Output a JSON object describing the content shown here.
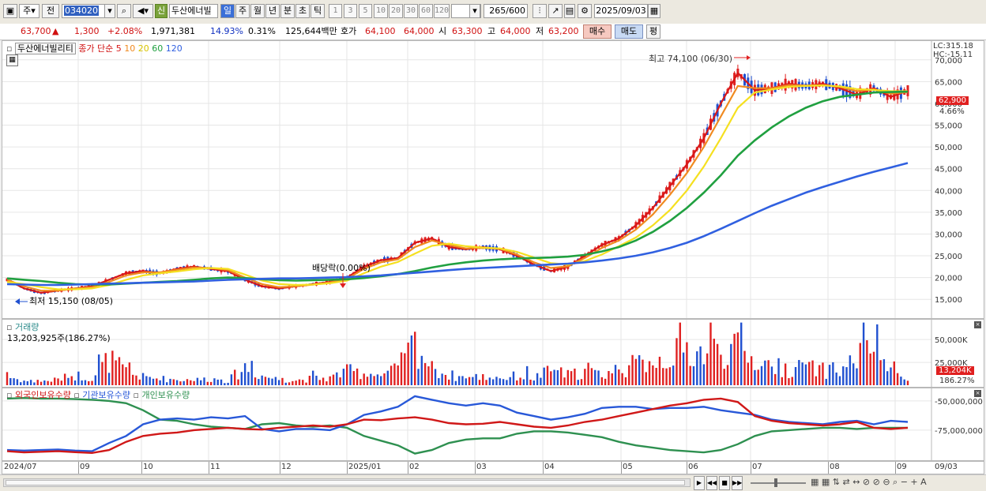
{
  "toolbar": {
    "market": "주",
    "prev": "전",
    "code": "034020",
    "shin": "신",
    "stock_name": "두산에너빌",
    "periods": [
      "일",
      "주",
      "월",
      "년",
      "분",
      "초",
      "틱"
    ],
    "minutes": [
      "1",
      "3",
      "5",
      "10",
      "20",
      "30",
      "60",
      "120"
    ],
    "count": "265",
    "count_max": "/600",
    "date": "2025/09/03"
  },
  "quote": {
    "price": "63,700",
    "arrow": "▲",
    "change": "1,300",
    "change_pct": "+2.08%",
    "volume": "1,971,381",
    "turnover": "14.93%",
    "ratio": "0.31%",
    "amount": "125,644백만",
    "hoga_label": "호가",
    "hoga1": "64,100",
    "hoga2": "64,000",
    "open_label": "시",
    "open": "63,300",
    "high_label": "고",
    "high": "64,000",
    "low_label": "저",
    "low": "63,200",
    "buy": "매수",
    "sell": "매도",
    "eval": "평"
  },
  "price_legend": {
    "name": "두산에너빌리티",
    "label": "종가 단순",
    "ma": [
      "5",
      "10",
      "20",
      "60",
      "120"
    ]
  },
  "indicators": {
    "lc": "LC:315.18",
    "hc": "HC:-15.11",
    "last_price": "62,900",
    "last_pct": "4.66%",
    "high_note": "최고 74,100 (06/30)",
    "low_note": "최저 15,150 (08/05)",
    "dividend_note": "배당락(0.00%)"
  },
  "volume_legend": {
    "title": "거래량",
    "value": "13,203,925주(186.27%)",
    "last_value": "13,204K",
    "last_pct": "186.27%"
  },
  "holding_legend": {
    "items": [
      "외국인보유수량",
      "기관보유수량",
      "개인보유수량"
    ]
  },
  "colors": {
    "up": "#e02020",
    "down": "#2050d0",
    "ma5": "#d81818",
    "ma10": "#f08a20",
    "ma20": "#f5e020",
    "ma60": "#20a040",
    "ma120": "#3060e0",
    "foreign": "#d01818",
    "institution": "#2858d8",
    "individual": "#2e9050"
  },
  "chart_data": [
    {
      "type": "line",
      "title": "",
      "xlabel": "",
      "ylabel": "",
      "ylim": [
        12500,
        72500
      ],
      "y_ticks": [
        "15,000",
        "20,000",
        "25,000",
        "30,000",
        "35,000",
        "40,000",
        "45,000",
        "50,000",
        "55,000",
        "60,000",
        "65,000",
        "70,000"
      ],
      "x_ticks": [
        "2024/07",
        "09",
        "10",
        "11",
        "12",
        "2025/01",
        "02",
        "03",
        "04",
        "05",
        "06",
        "07",
        "08",
        "09",
        "09/03"
      ],
      "x": [
        0,
        5,
        10,
        15,
        20,
        25,
        30,
        35,
        40,
        45,
        50,
        55,
        60,
        65,
        70,
        75,
        80,
        85,
        90,
        95,
        100,
        105,
        110,
        115,
        120,
        125,
        130,
        135,
        140,
        145,
        150,
        155,
        160,
        165,
        170,
        175,
        180,
        185,
        190,
        195,
        200,
        205,
        210,
        215,
        220,
        225,
        230,
        235,
        240,
        245,
        250,
        255,
        260,
        265
      ],
      "series": [
        {
          "name": "5",
          "values": [
            19500,
            17500,
            16500,
            17000,
            17500,
            18000,
            19500,
            21000,
            21500,
            21000,
            22000,
            22500,
            22000,
            21500,
            19500,
            18000,
            17500,
            18000,
            18500,
            19000,
            20000,
            22500,
            24000,
            24500,
            28000,
            29000,
            27000,
            26500,
            27000,
            26500,
            25000,
            23000,
            21500,
            22500,
            25000,
            27500,
            29000,
            32000,
            36000,
            41000,
            46000,
            52000,
            60000,
            67000,
            63000,
            63500,
            64500,
            64000,
            64500,
            63500,
            62000,
            63500,
            61500,
            62900
          ]
        },
        {
          "name": "10",
          "values": [
            19500,
            18000,
            17000,
            17000,
            17500,
            17800,
            19000,
            20500,
            21200,
            21200,
            21800,
            22300,
            22200,
            21700,
            20000,
            18500,
            17800,
            18000,
            18400,
            18900,
            19700,
            22000,
            23500,
            24200,
            27000,
            28500,
            27500,
            26700,
            26800,
            26600,
            25300,
            23500,
            22200,
            22600,
            24500,
            26800,
            28500,
            31000,
            34500,
            39000,
            44000,
            50000,
            57000,
            64000,
            63500,
            63500,
            64200,
            64100,
            64200,
            63800,
            62800,
            63200,
            62200,
            62600
          ]
        },
        {
          "name": "20",
          "values": [
            19000,
            18500,
            17800,
            17300,
            17300,
            17500,
            18300,
            19500,
            20500,
            21000,
            21400,
            21900,
            22200,
            22000,
            20700,
            19300,
            18500,
            18300,
            18400,
            18700,
            19300,
            21000,
            22500,
            23600,
            25500,
            27300,
            27800,
            27200,
            26900,
            26700,
            25900,
            24600,
            23300,
            23000,
            23800,
            25300,
            27200,
            29200,
            32000,
            35500,
            40000,
            45500,
            52000,
            59000,
            62500,
            63200,
            63800,
            64000,
            64100,
            63900,
            63300,
            63100,
            62800,
            62800
          ]
        },
        {
          "name": "60",
          "values": [
            19800,
            19500,
            19200,
            18800,
            18500,
            18400,
            18400,
            18600,
            18800,
            19000,
            19200,
            19500,
            19800,
            20000,
            19900,
            19600,
            19400,
            19300,
            19400,
            19500,
            19600,
            19900,
            20300,
            20800,
            21500,
            22300,
            23000,
            23500,
            23900,
            24200,
            24400,
            24500,
            24600,
            24800,
            25200,
            26000,
            27000,
            28500,
            30500,
            33000,
            36000,
            39500,
            43500,
            48000,
            51500,
            54500,
            57000,
            59000,
            60500,
            61500,
            62000,
            62500,
            62600,
            62700
          ]
        },
        {
          "name": "120",
          "values": [
            18500,
            18400,
            18300,
            18300,
            18400,
            18500,
            18600,
            18700,
            18800,
            18900,
            19000,
            19100,
            19300,
            19500,
            19600,
            19700,
            19800,
            19800,
            19900,
            20000,
            20100,
            20300,
            20500,
            20800,
            21100,
            21400,
            21700,
            22000,
            22200,
            22400,
            22600,
            22800,
            23000,
            23200,
            23500,
            23900,
            24400,
            25000,
            25800,
            26800,
            28000,
            29500,
            31200,
            33000,
            34800,
            36500,
            38000,
            39500,
            40800,
            42000,
            43200,
            44300,
            45300,
            46300
          ]
        }
      ]
    },
    {
      "type": "bar",
      "title": "",
      "xlabel": "",
      "ylabel": "",
      "ylim": [
        0,
        70000000
      ],
      "y_ticks": [
        "25,000K",
        "50,000K"
      ],
      "x": [
        0,
        5,
        10,
        15,
        20,
        25,
        30,
        35,
        40,
        45,
        50,
        55,
        60,
        65,
        70,
        75,
        80,
        85,
        90,
        95,
        100,
        105,
        110,
        115,
        120,
        125,
        130,
        135,
        140,
        145,
        150,
        155,
        160,
        165,
        170,
        175,
        180,
        185,
        190,
        195,
        200,
        205,
        210,
        215,
        220,
        225,
        230,
        235,
        240,
        245,
        250,
        255,
        260,
        265
      ],
      "series": [
        {
          "name": "거래량",
          "values": [
            12000000,
            6000000,
            5000000,
            8000000,
            14000000,
            10000000,
            36000000,
            18000000,
            11000000,
            9000000,
            8000000,
            7000000,
            9000000,
            6000000,
            25000000,
            13000000,
            8000000,
            7000000,
            9000000,
            10000000,
            19000000,
            17000000,
            14000000,
            22000000,
            58000000,
            22000000,
            14000000,
            10000000,
            12000000,
            9000000,
            13000000,
            10000000,
            20000000,
            14000000,
            18000000,
            15000000,
            22000000,
            28000000,
            32000000,
            40000000,
            48000000,
            44000000,
            50000000,
            47000000,
            34000000,
            26000000,
            22000000,
            24000000,
            20000000,
            19000000,
            38000000,
            63000000,
            16000000,
            13204000
          ]
        }
      ]
    },
    {
      "type": "line",
      "title": "",
      "xlabel": "",
      "ylabel": "",
      "ylim": [
        -98000000,
        -42000000
      ],
      "y_ticks": [
        "-50,000,000",
        "-75,000,000"
      ],
      "x": [
        0,
        5,
        10,
        15,
        20,
        25,
        30,
        35,
        40,
        45,
        50,
        55,
        60,
        65,
        70,
        75,
        80,
        85,
        90,
        95,
        100,
        105,
        110,
        115,
        120,
        125,
        130,
        135,
        140,
        145,
        150,
        155,
        160,
        165,
        170,
        175,
        180,
        185,
        190,
        195,
        200,
        205,
        210,
        215,
        220,
        225,
        230,
        235,
        240,
        245,
        250,
        255,
        260,
        265
      ],
      "series": [
        {
          "name": "외국인보유수량",
          "values": [
            -93000000,
            -94000000,
            -93500000,
            -93000000,
            -93800000,
            -94500000,
            -92000000,
            -85000000,
            -80000000,
            -78000000,
            -77000000,
            -75000000,
            -74000000,
            -73000000,
            -74000000,
            -74500000,
            -73000000,
            -72000000,
            -71000000,
            -72000000,
            -70000000,
            -66000000,
            -66500000,
            -65000000,
            -64000000,
            -66000000,
            -69000000,
            -70000000,
            -69500000,
            -68000000,
            -70000000,
            -72000000,
            -73000000,
            -71000000,
            -68000000,
            -66000000,
            -63000000,
            -60000000,
            -57000000,
            -54000000,
            -52000000,
            -49000000,
            -48000000,
            -51000000,
            -63000000,
            -67000000,
            -69000000,
            -70000000,
            -71000000,
            -70000000,
            -68000000,
            -73000000,
            -74000000,
            -73000000
          ]
        },
        {
          "name": "기관보유수량",
          "values": [
            -92000000,
            -92500000,
            -92000000,
            -91500000,
            -92500000,
            -93000000,
            -86000000,
            -80000000,
            -70000000,
            -66000000,
            -65000000,
            -66000000,
            -64000000,
            -65000000,
            -63000000,
            -74000000,
            -76000000,
            -74000000,
            -74000000,
            -75000000,
            -70000000,
            -62000000,
            -59000000,
            -55000000,
            -46000000,
            -49000000,
            -52000000,
            -54000000,
            -52000000,
            -54000000,
            -60000000,
            -63000000,
            -66000000,
            -64000000,
            -61000000,
            -56000000,
            -55000000,
            -55000000,
            -57000000,
            -56000000,
            -56000000,
            -55000000,
            -58000000,
            -60000000,
            -62000000,
            -66000000,
            -68000000,
            -69000000,
            -70000000,
            -68000000,
            -67000000,
            -70000000,
            -67000000,
            -68000000
          ]
        },
        {
          "name": "개인보유수량",
          "values": [
            -48000000,
            -47500000,
            -48000000,
            -48000000,
            -48500000,
            -49000000,
            -50000000,
            -52000000,
            -58000000,
            -66000000,
            -67000000,
            -70000000,
            -72000000,
            -73000000,
            -74000000,
            -70000000,
            -69000000,
            -71000000,
            -72000000,
            -71000000,
            -73000000,
            -80000000,
            -84000000,
            -88000000,
            -95000000,
            -92000000,
            -86000000,
            -83000000,
            -82000000,
            -82000000,
            -78000000,
            -76000000,
            -76000000,
            -77000000,
            -79000000,
            -81000000,
            -85000000,
            -88000000,
            -90000000,
            -92000000,
            -93000000,
            -94000000,
            -92000000,
            -87000000,
            -80000000,
            -76000000,
            -75000000,
            -74000000,
            -73000000,
            -73000000,
            -74000000,
            -73000000,
            -73000000,
            -73000000
          ]
        }
      ]
    }
  ]
}
